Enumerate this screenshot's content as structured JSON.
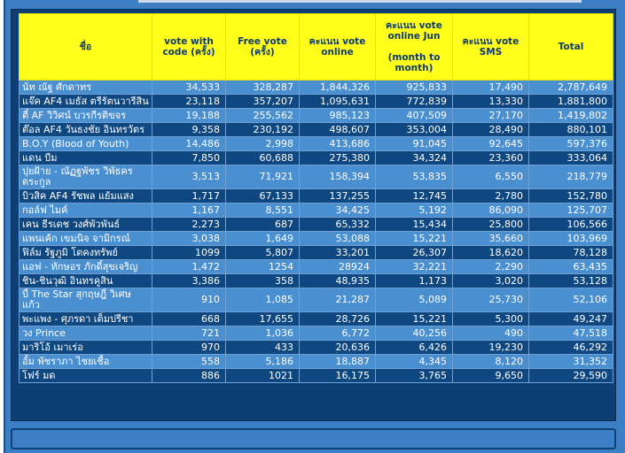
{
  "headers": {
    "name": "ชื่อ",
    "vote_code": "vote with code (ครั้ง)",
    "free_vote": "Free vote (ครั้ง)",
    "online": "คะแนน vote online",
    "online_jun_line1": "คะแนน vote online   Jun",
    "online_jun_line2": "(month to month)",
    "sms": "คะแนน vote SMS",
    "total": "Total"
  },
  "rows": [
    {
      "name": "นัท ณัฐ ศักดาทร",
      "code": "34,533",
      "free": "328,287",
      "online": "1,844,326",
      "jun": "925,833",
      "sms": "17,490",
      "total": "2,787,649"
    },
    {
      "name": "แจ๊ค AF4 เมธัส ตรีรัตนวารีสิน",
      "code": "23,118",
      "free": "357,207",
      "online": "1,095,631",
      "jun": "772,839",
      "sms": "13,330",
      "total": "1,881,800"
    },
    {
      "name": "ตี๋ AF วิวิศน์ บวรกีรติขจร",
      "code": "19,188",
      "free": "255,562",
      "online": "985,123",
      "jun": "407,509",
      "sms": "27,170",
      "total": "1,419,802"
    },
    {
      "name": "ต๊อล AF4 วันธงชัย อินทรวัตร",
      "code": "9,358",
      "free": "230,192",
      "online": "498,607",
      "jun": "353,004",
      "sms": "28,490",
      "total": "880,101"
    },
    {
      "name": "B.O.Y (Blood of Youth)",
      "code": "14,486",
      "free": "2,998",
      "online": "413,686",
      "jun": "91,045",
      "sms": "92,645",
      "total": "597,376"
    },
    {
      "name": "แดน  บีม",
      "code": "7,850",
      "free": "60,688",
      "online": "275,380",
      "jun": "34,324",
      "sms": "23,360",
      "total": "333,064"
    },
    {
      "name": "ปุยฝ้าย - ณัฏฐพัชร วิพัธครตระกูล",
      "code": "3,513",
      "free": "71,921",
      "online": "158,394",
      "jun": "53,835",
      "sms": "6,550",
      "total": "218,779",
      "tall": true
    },
    {
      "name": "บิวสิค AF4 รัชพล แย้มแสง",
      "code": "1,717",
      "free": "67,133",
      "online": "137,255",
      "jun": "12,745",
      "sms": "2,780",
      "total": "152,780"
    },
    {
      "name": "กอล์ฟ ไมค์",
      "code": "1,167",
      "free": "8,551",
      "online": "34,425",
      "jun": "5,192",
      "sms": "86,090",
      "total": "125,707"
    },
    {
      "name": "เคน ธีรเดช วงศ์พัวพันธ์",
      "code": "2,273",
      "free": "687",
      "online": "65,332",
      "jun": "15,434",
      "sms": "25,800",
      "total": "106,566"
    },
    {
      "name": "แพนเค้ก เขมนิจ จามิกรณ์",
      "code": "3,038",
      "free": "1,649",
      "online": "53,088",
      "jun": "15,221",
      "sms": "35,660",
      "total": "103,969"
    },
    {
      "name": "ฟิล์ม รัฐภูมิ โตคงทรัพย์",
      "code": "1099",
      "free": "5,807",
      "online": "33,201",
      "jun": "26,307",
      "sms": "18,620",
      "total": "78,128"
    },
    {
      "name": "แอฟ - ทักษอร ภักดิ์สุขเจริญ",
      "code": "1,472",
      "free": "1254",
      "online": "28924",
      "jun": "32,221",
      "sms": "2,290",
      "total": "63,435"
    },
    {
      "name": "ชิน-ชินวุฒิ อินทรคูสิน",
      "code": "3,386",
      "free": "358",
      "online": "48,935",
      "jun": "1,173",
      "sms": "3,020",
      "total": "53,128"
    },
    {
      "name": "บี้ The Star สุกฤษฎิ์ วิเศษแก้ว",
      "code": "910",
      "free": "1,085",
      "online": "21,287",
      "jun": "5,089",
      "sms": "25,730",
      "total": "52,106",
      "tall": true
    },
    {
      "name": "พะแพง - ศุภรดา เต็มปรีชา",
      "code": "668",
      "free": "17,655",
      "online": "28,726",
      "jun": "15,221",
      "sms": "5,300",
      "total": "49,247"
    },
    {
      "name": "วง Prince",
      "code": "721",
      "free": "1,036",
      "online": "6,772",
      "jun": "40,256",
      "sms": "490",
      "total": "47,518"
    },
    {
      "name": "มาริโอ้ เมาเร่อ",
      "code": "970",
      "free": "433",
      "online": "20,636",
      "jun": "6,426",
      "sms": "19,230",
      "total": "46,292"
    },
    {
      "name": "อั้ม พัชราภา ไชยเชื้อ",
      "code": "558",
      "free": "5,186",
      "online": "18,887",
      "jun": "4,345",
      "sms": "8,120",
      "total": "31,352"
    },
    {
      "name": "โฟร์ มด",
      "code": "886",
      "free": "1021",
      "online": "16,175",
      "jun": "3,765",
      "sms": "9,650",
      "total": "29,590"
    }
  ]
}
